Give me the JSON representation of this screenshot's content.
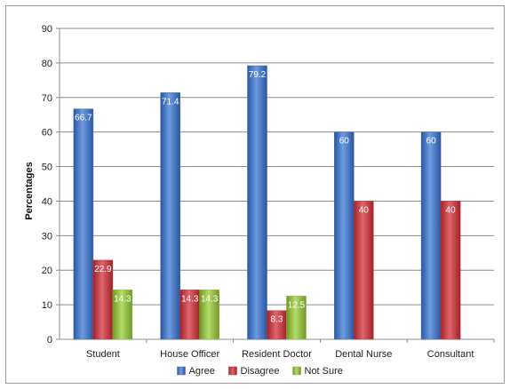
{
  "chart_data": {
    "type": "bar",
    "ylabel": "Percentages",
    "ylim": [
      0,
      90
    ],
    "ytick_step": 10,
    "grid": true,
    "legend_placement": "bottom",
    "categories": [
      "Student",
      "House Officer",
      "Resident Doctor",
      "Dental Nurse",
      "Consultant"
    ],
    "series": [
      {
        "name": "Agree",
        "color": "#3b6fc0",
        "values": [
          66.7,
          71.4,
          79.2,
          60,
          60
        ],
        "labels": [
          "66.7",
          "71.4",
          "79.2",
          "60",
          "60"
        ]
      },
      {
        "name": "Disagree",
        "color": "#c0343a",
        "values": [
          22.9,
          14.3,
          8.3,
          40,
          40
        ],
        "labels": [
          "22.9",
          "14.3",
          "8.3",
          "40",
          "40"
        ]
      },
      {
        "name": "Not Sure",
        "color": "#8cb83a",
        "values": [
          14.3,
          14.3,
          12.5,
          null,
          null
        ],
        "labels": [
          "14.3",
          "14.3",
          "12.5",
          "",
          ""
        ]
      }
    ]
  }
}
